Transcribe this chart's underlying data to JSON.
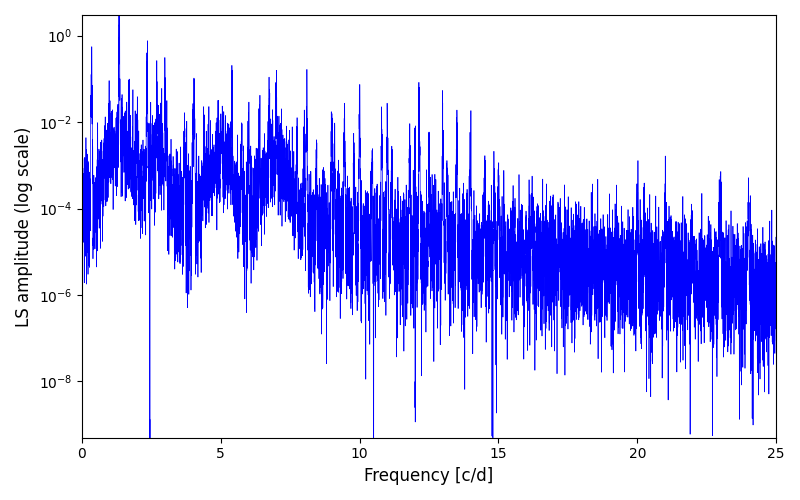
{
  "title": "",
  "xlabel": "Frequency [c/d]",
  "ylabel": "LS amplitude (log scale)",
  "line_color": "#0000ff",
  "line_width": 0.5,
  "freq_min": 0.0,
  "freq_max": 25.0,
  "ylim_min": 5e-10,
  "ylim_max": 3.0,
  "xlim_min": 0.0,
  "xlim_max": 25.0,
  "figsize": [
    8.0,
    5.0
  ],
  "dpi": 100,
  "seed": 42,
  "n_points": 8000,
  "main_freq": 1.35,
  "noise_floor_start": 0.0002,
  "noise_floor_end": 2e-06
}
